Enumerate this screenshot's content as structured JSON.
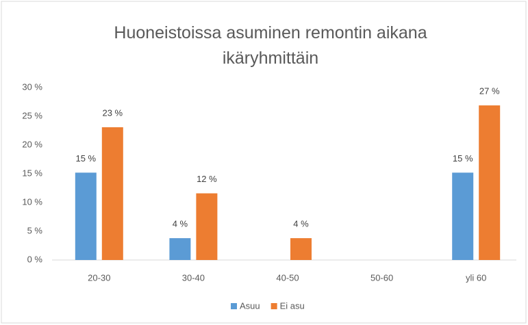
{
  "chart_data": {
    "type": "bar",
    "title": "Huoneistoissa asuminen remontin aikana ikäryhmittäin",
    "categories": [
      "20-30",
      "30-40",
      "40-50",
      "50-60",
      "yli 60"
    ],
    "series": [
      {
        "name": "Asuu",
        "color": "#5b9bd5",
        "values": [
          15.2,
          3.8,
          null,
          null,
          15.2
        ],
        "value_labels": [
          "15 %",
          "4 %",
          null,
          null,
          "15 %"
        ]
      },
      {
        "name": "Ei asu",
        "color": "#ed7d31",
        "values": [
          23.1,
          11.6,
          3.8,
          null,
          26.9
        ],
        "value_labels": [
          "23 %",
          "12 %",
          "4 %",
          null,
          "27 %"
        ]
      }
    ],
    "ylim": [
      0,
      30
    ],
    "yticks": [
      {
        "value": 0,
        "label": "0 %"
      },
      {
        "value": 5,
        "label": "5 %"
      },
      {
        "value": 10,
        "label": "10 %"
      },
      {
        "value": 15,
        "label": "15 %"
      },
      {
        "value": 20,
        "label": "20 %"
      },
      {
        "value": 25,
        "label": "25 %"
      },
      {
        "value": 30,
        "label": "30 %"
      }
    ],
    "grid": false,
    "legend": "bottom"
  }
}
